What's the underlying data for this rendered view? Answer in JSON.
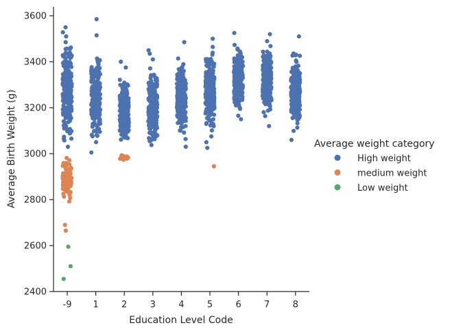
{
  "chart_data": {
    "type": "scatter",
    "subtype": "strip",
    "title": "",
    "xlabel": "Education Level Code",
    "ylabel": "Average Birth Weight (g)",
    "categories": [
      "-9",
      "1",
      "2",
      "3",
      "4",
      "5",
      "6",
      "7",
      "8"
    ],
    "ylim": [
      2400,
      3650
    ],
    "yticks": [
      2400,
      2600,
      2800,
      3000,
      3200,
      3400,
      3600
    ],
    "grid": false,
    "legend": {
      "title": "Average weight category",
      "placement": "right",
      "entries": [
        {
          "name": "High weight",
          "color": "#4c72b0"
        },
        {
          "name": "medium weight",
          "color": "#dd8452"
        },
        {
          "name": "Low weight",
          "color": "#55a868"
        }
      ]
    },
    "groups": [
      {
        "category": "-9",
        "high": {
          "min": 3000,
          "max": 3550,
          "n": 260
        },
        "medium": {
          "min": 2775,
          "max": 2995,
          "n": 90
        }
      },
      {
        "category": "1",
        "high": {
          "min": 3005,
          "max": 3480,
          "n": 220
        }
      },
      {
        "category": "2",
        "high": {
          "min": 3000,
          "max": 3350,
          "n": 240
        },
        "medium": {
          "min": 2965,
          "max": 2998,
          "n": 14
        }
      },
      {
        "category": "3",
        "high": {
          "min": 3000,
          "max": 3410,
          "n": 220
        }
      },
      {
        "category": "4",
        "high": {
          "min": 3030,
          "max": 3450,
          "n": 240
        }
      },
      {
        "category": "5",
        "high": {
          "min": 3080,
          "max": 3480,
          "n": 250
        }
      },
      {
        "category": "6",
        "high": {
          "min": 3150,
          "max": 3500,
          "n": 260
        }
      },
      {
        "category": "7",
        "high": {
          "min": 3130,
          "max": 3500,
          "n": 260
        }
      },
      {
        "category": "8",
        "high": {
          "min": 3080,
          "max": 3470,
          "n": 230
        }
      }
    ],
    "outliers": [
      {
        "category": "-9",
        "series": "High weight",
        "y": 3550
      },
      {
        "category": "-9",
        "series": "High weight",
        "y": 3510
      },
      {
        "category": "-9",
        "series": "medium weight",
        "y": 2690
      },
      {
        "category": "-9",
        "series": "medium weight",
        "y": 2665
      },
      {
        "category": "-9",
        "series": "Low weight",
        "y": 2595
      },
      {
        "category": "-9",
        "series": "Low weight",
        "y": 2510
      },
      {
        "category": "-9",
        "series": "Low weight",
        "y": 2455
      },
      {
        "category": "1",
        "series": "High weight",
        "y": 3585
      },
      {
        "category": "1",
        "series": "High weight",
        "y": 3515
      },
      {
        "category": "1",
        "series": "High weight",
        "y": 3005
      },
      {
        "category": "2",
        "series": "High weight",
        "y": 3400
      },
      {
        "category": "2",
        "series": "High weight",
        "y": 3375
      },
      {
        "category": "3",
        "series": "High weight",
        "y": 3450
      },
      {
        "category": "3",
        "series": "High weight",
        "y": 3435
      },
      {
        "category": "3",
        "series": "High weight",
        "y": 3410
      },
      {
        "category": "4",
        "series": "High weight",
        "y": 3485
      },
      {
        "category": "4",
        "series": "High weight",
        "y": 3030
      },
      {
        "category": "5",
        "series": "High weight",
        "y": 3500
      },
      {
        "category": "5",
        "series": "High weight",
        "y": 3075
      },
      {
        "category": "5",
        "series": "High weight",
        "y": 3050
      },
      {
        "category": "5",
        "series": "High weight",
        "y": 3025
      },
      {
        "category": "5",
        "series": "medium weight",
        "y": 2945
      },
      {
        "category": "6",
        "series": "High weight",
        "y": 3525
      },
      {
        "category": "6",
        "series": "High weight",
        "y": 3150
      },
      {
        "category": "7",
        "series": "High weight",
        "y": 3520
      },
      {
        "category": "7",
        "series": "High weight",
        "y": 3120
      },
      {
        "category": "8",
        "series": "High weight",
        "y": 3510
      },
      {
        "category": "8",
        "series": "High weight",
        "y": 3060
      }
    ]
  }
}
